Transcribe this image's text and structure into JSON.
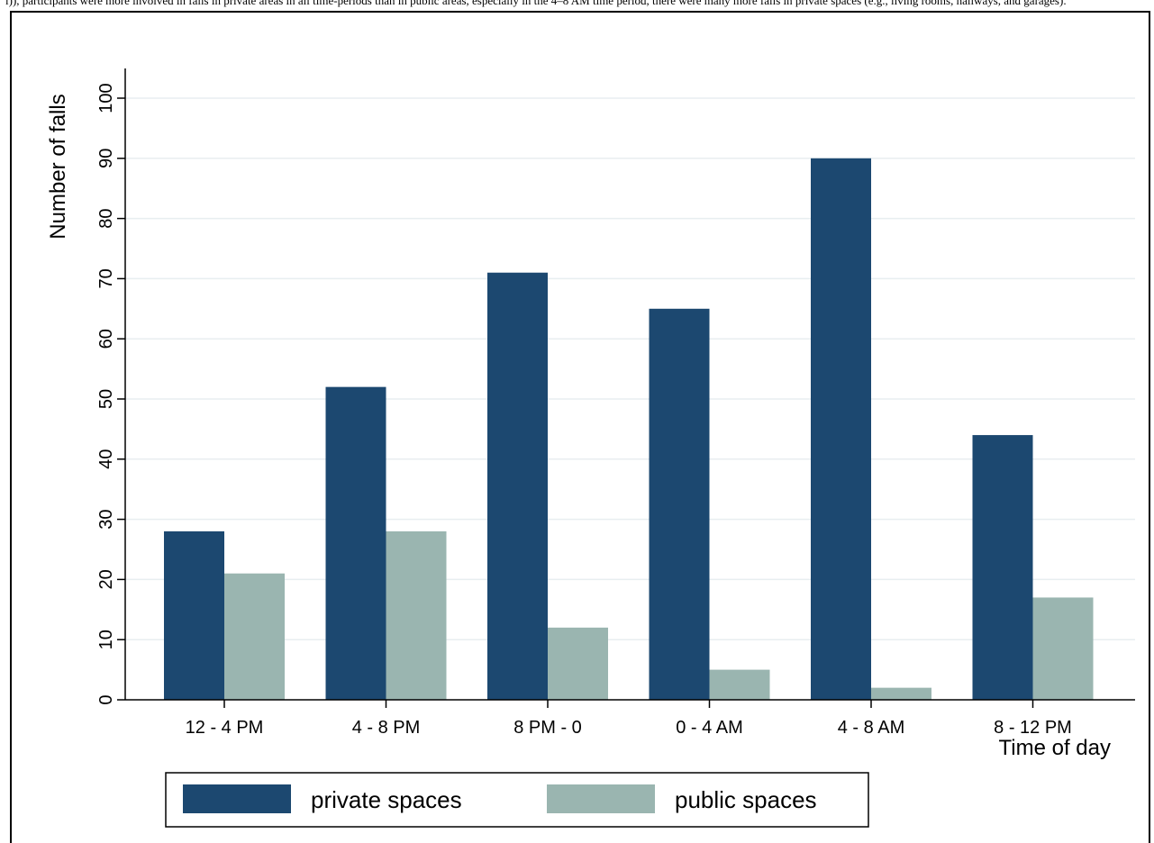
{
  "caption": "l)), participants were more involved in falls in private areas in all time-periods than in public areas, especially in the 4–8 AM time period, there were many more falls in private spaces (e.g., living rooms, hallways, and garages).",
  "chart_data": {
    "type": "bar",
    "categories": [
      "12 - 4 PM",
      "4 - 8 PM",
      "8 PM - 0",
      "0 - 4 AM",
      "4 - 8 AM",
      "8 - 12 PM"
    ],
    "series": [
      {
        "name": "private spaces",
        "values": [
          28,
          52,
          71,
          65,
          90,
          44
        ],
        "color": "#1c4870"
      },
      {
        "name": "public spaces",
        "values": [
          21,
          28,
          12,
          5,
          2,
          17
        ],
        "color": "#9ab5b0"
      }
    ],
    "xlabel": "Time of day",
    "ylabel": "Number of falls",
    "ylim": [
      0,
      100
    ],
    "yticks": [
      0,
      10,
      20,
      30,
      40,
      50,
      60,
      70,
      80,
      90,
      100
    ],
    "grid": true,
    "legend": "bottom"
  }
}
